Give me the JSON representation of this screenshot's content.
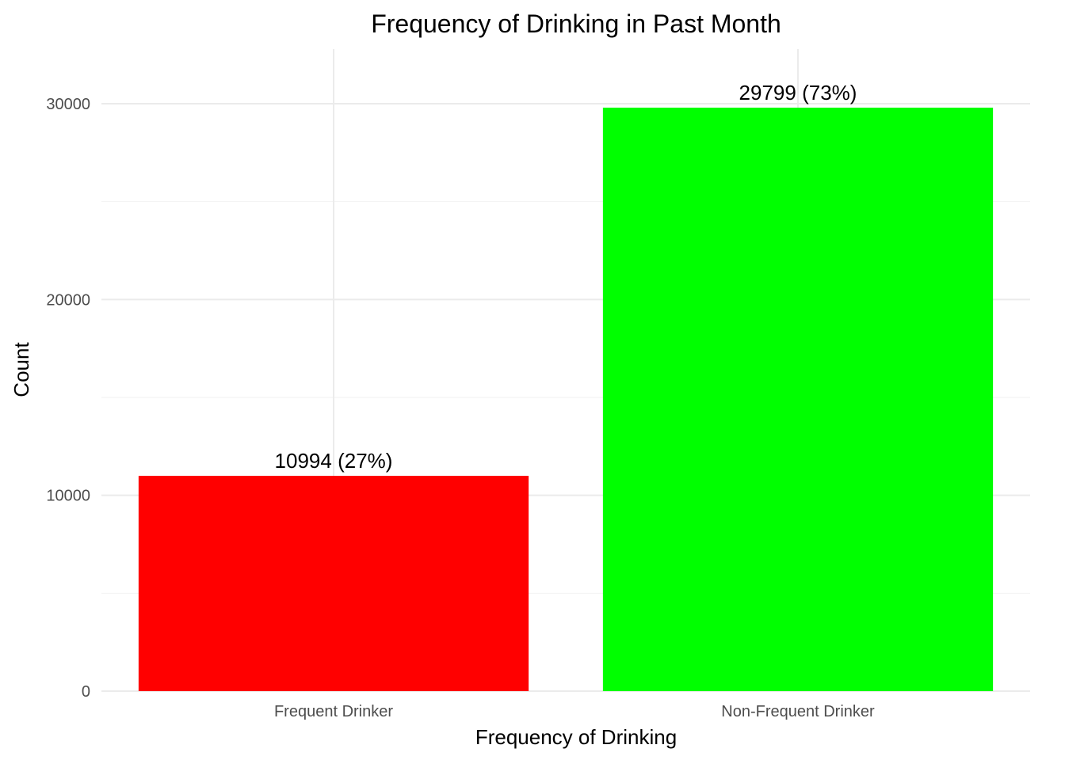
{
  "chart_data": {
    "type": "bar",
    "title": "Frequency of Drinking in Past Month",
    "xlabel": "Frequency of Drinking",
    "ylabel": "Count",
    "categories": [
      "Frequent Drinker",
      "Non-Frequent Drinker"
    ],
    "values": [
      10994,
      29799
    ],
    "data_labels": [
      "10994 (27%)",
      "29799 (73%)"
    ],
    "colors": [
      "#ff0000",
      "#00ff00"
    ],
    "ylim": [
      0,
      32800
    ],
    "yticks": [
      0,
      10000,
      20000,
      30000
    ],
    "ytick_labels": [
      "0",
      "10000",
      "20000",
      "30000"
    ],
    "y_minor_ticks": [
      5000,
      15000,
      25000
    ],
    "grid": true,
    "legend": "none"
  }
}
